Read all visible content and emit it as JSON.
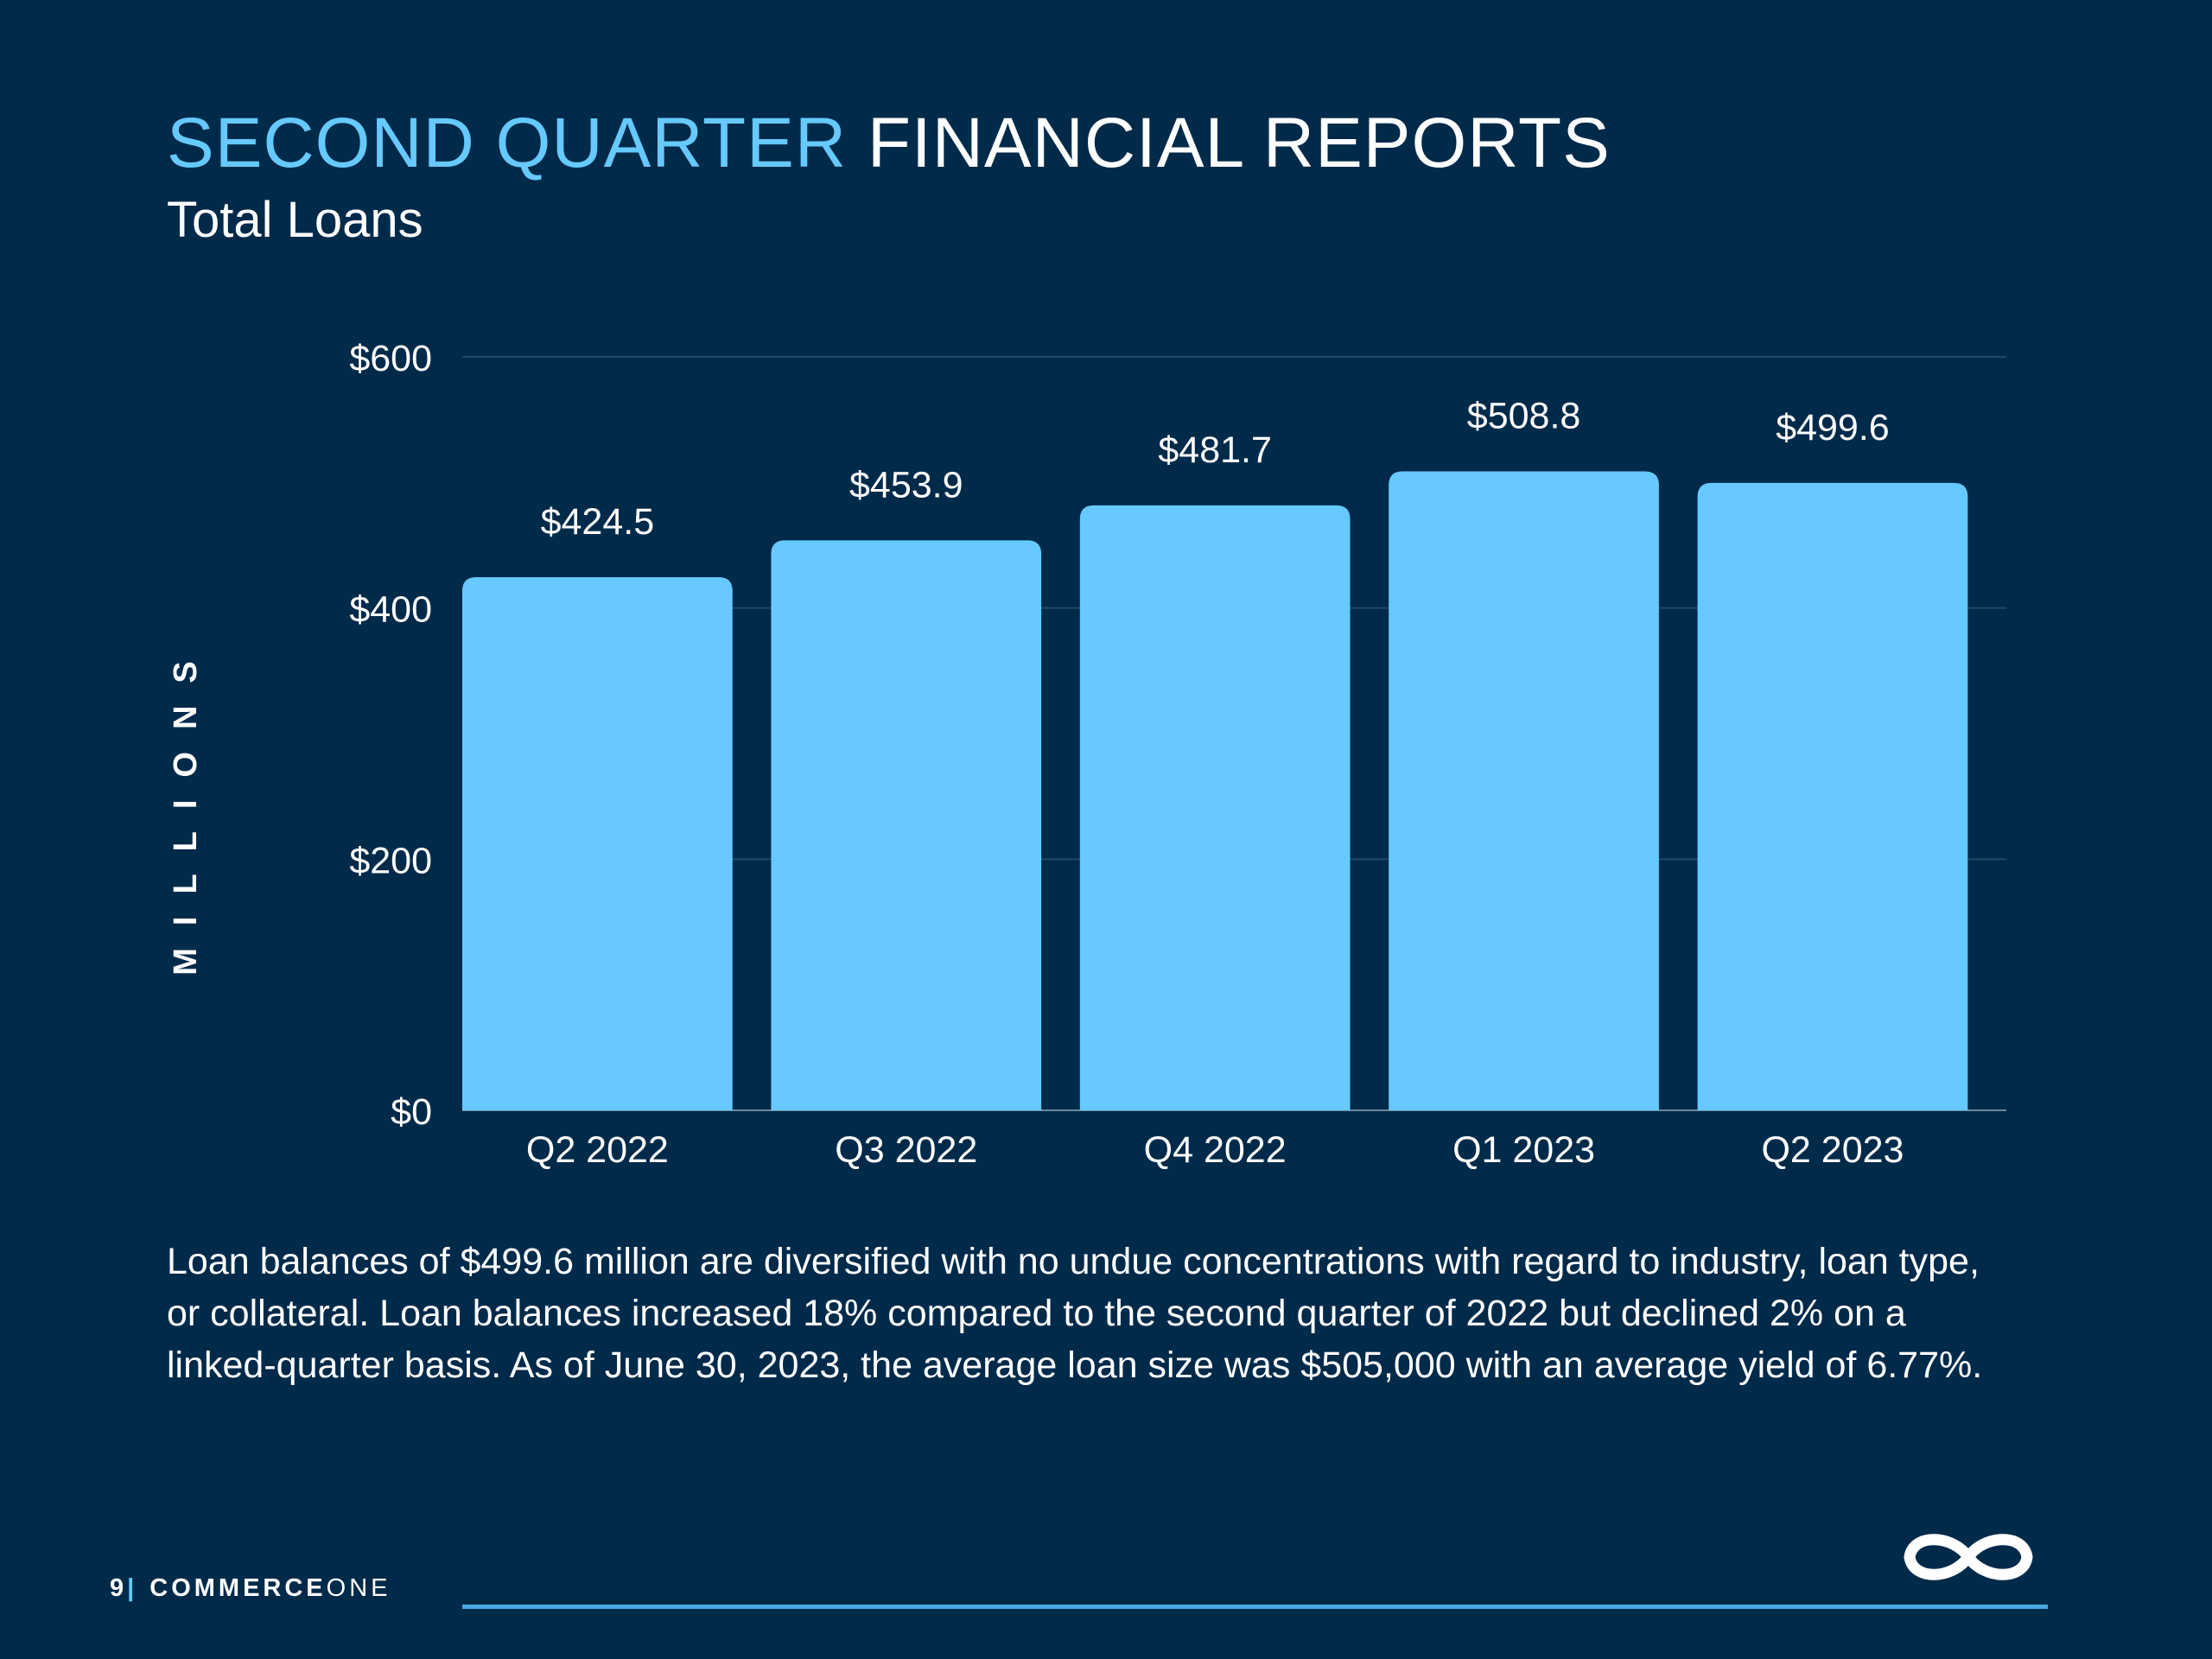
{
  "header": {
    "title_accent": "SECOND QUARTER",
    "title_main": "FINANCIAL REPORTS",
    "subtitle": "Total Loans"
  },
  "chart_data": {
    "type": "bar",
    "categories": [
      "Q2 2022",
      "Q3 2022",
      "Q4 2022",
      "Q1 2023",
      "Q2 2023"
    ],
    "values": [
      424.5,
      453.9,
      481.7,
      508.8,
      499.6
    ],
    "data_labels": [
      "$424.5",
      "$453.9",
      "$481.7",
      "$508.8",
      "$499.6"
    ],
    "ylabel": "MILLIONS",
    "ylim": [
      0,
      600
    ],
    "yticks": [
      0,
      200,
      400,
      600
    ],
    "ytick_labels": [
      "$0",
      "$200",
      "$400",
      "$600"
    ],
    "grid": true,
    "bar_color": "#66c9ff",
    "grid_color": "#1f4a66"
  },
  "description": "Loan balances of $499.6 million are diversified with no undue concentrations with regard to industry, loan type, or collateral. Loan balances increased 18% compared to the second quarter of 2022 but declined 2% on a linked-quarter basis. As of June 30, 2023, the average loan size was $505,000 with an average yield of 6.77%.",
  "footer": {
    "page_number": "9",
    "separator": "|",
    "brand_bold": "COMMERCE",
    "brand_light": "ONE",
    "logo_icon": "infinity-icon"
  },
  "colors": {
    "background": "#002a4a",
    "accent": "#66c9ff",
    "text": "#ffffff",
    "footer_line": "#4aa8e4"
  }
}
